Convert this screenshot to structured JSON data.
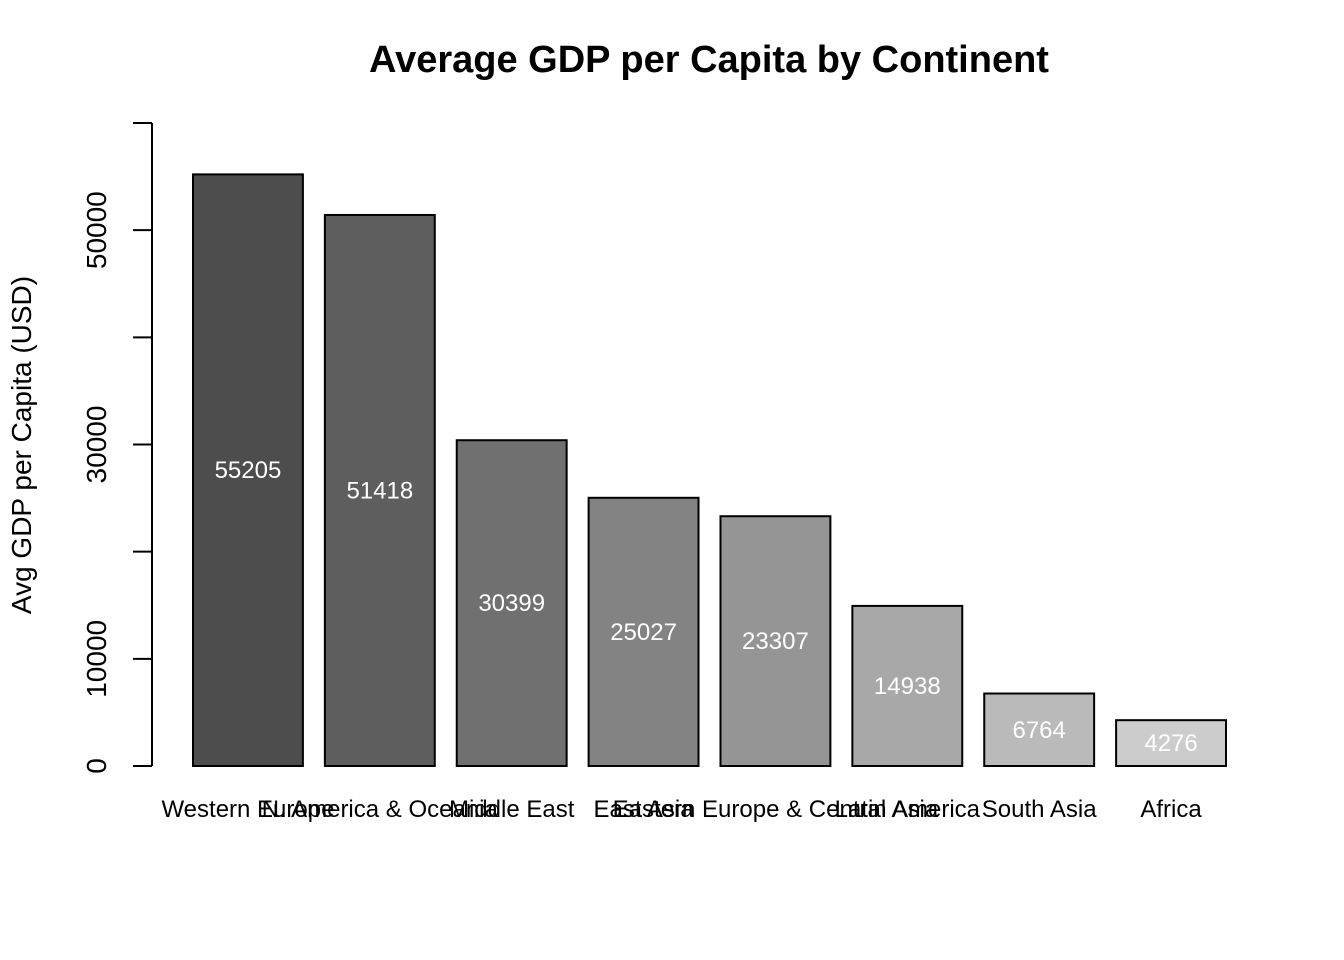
{
  "chart_data": {
    "type": "bar",
    "title": "Average GDP per Capita by Continent",
    "xlabel": "",
    "ylabel": "Avg GDP per Capita (USD)",
    "categories": [
      "Western Europe",
      "N. America & Oceania",
      "Middle East",
      "East Asia",
      "Eastern Europe & Central Asia",
      "Latin America",
      "South Asia",
      "Africa"
    ],
    "values": [
      55205,
      51418,
      30399,
      25027,
      23307,
      14938,
      6764,
      4276
    ],
    "data_labels": [
      "55205",
      "51418",
      "30399",
      "25027",
      "23307",
      "14938",
      "6764",
      "4276"
    ],
    "colors": [
      "#4d4d4d",
      "#5e5e5e",
      "#707070",
      "#838383",
      "#959595",
      "#a8a8a8",
      "#bababa",
      "#cccccc"
    ],
    "ylim": [
      0,
      60000
    ],
    "yticks": [
      0,
      10000,
      20000,
      30000,
      40000,
      50000,
      60000
    ],
    "ytick_labels": [
      "0",
      "10000",
      "",
      "30000",
      "",
      "50000",
      ""
    ],
    "grid": false,
    "legend": "none"
  }
}
